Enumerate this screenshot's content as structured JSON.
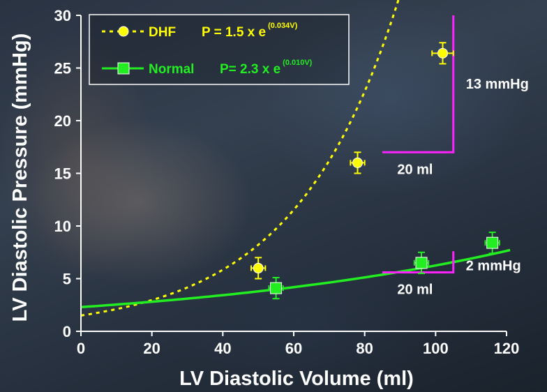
{
  "chart_data": {
    "type": "scatter",
    "xlabel": "LV Diastolic Volume (ml)",
    "ylabel": "LV Diastolic Pressure (mmHg)",
    "xlim": [
      0,
      120
    ],
    "ylim": [
      0,
      30
    ],
    "x_ticks": [
      "0",
      "20",
      "40",
      "60",
      "80",
      "100",
      "120"
    ],
    "y_ticks": [
      "0",
      "5",
      "10",
      "15",
      "20",
      "25",
      "30"
    ],
    "grid": false,
    "legend_position": "top-left",
    "series": [
      {
        "name": "DHF",
        "equation_base": "P = 1.5 x e",
        "equation_exponent": "(0.034V)",
        "color": "#ffff00",
        "marker": "circle",
        "line_style": "dotted",
        "fit": {
          "a": 1.5,
          "k": 0.034,
          "x_range": [
            0,
            104
          ]
        },
        "points": [
          {
            "x": 50,
            "y": 6.0,
            "y_err": 1.0,
            "x_err": 2
          },
          {
            "x": 78,
            "y": 16.0,
            "y_err": 1.0,
            "x_err": 2
          },
          {
            "x": 102,
            "y": 26.4,
            "y_err": 1.0,
            "x_err": 3
          }
        ]
      },
      {
        "name": "Normal",
        "equation_base": "P= 2.3 x e",
        "equation_exponent": "(0.010V)",
        "color": "#22ee22",
        "marker": "square",
        "line_style": "solid",
        "fit": {
          "a": 2.3,
          "k": 0.01,
          "x_range": [
            0,
            121
          ]
        },
        "points": [
          {
            "x": 55,
            "y": 4.1,
            "y_err": 1.0,
            "x_err": 2
          },
          {
            "x": 96,
            "y": 6.5,
            "y_err": 1.0,
            "x_err": 2
          },
          {
            "x": 116,
            "y": 8.4,
            "y_err": 1.0,
            "x_err": 2
          }
        ]
      }
    ],
    "annotations": [
      {
        "series": "DHF",
        "dx_label": "20 ml",
        "dy_label": "13 mmHg",
        "x_from": 85,
        "x_to": 105,
        "y_from": 17,
        "y_to": 30,
        "color": "#ff22ff"
      },
      {
        "series": "Normal",
        "dx_label": "20 ml",
        "dy_label": "2 mmHg",
        "x_from": 85,
        "x_to": 105,
        "y_from": 5.6,
        "y_to": 7.6,
        "color": "#ff22ff"
      }
    ]
  }
}
